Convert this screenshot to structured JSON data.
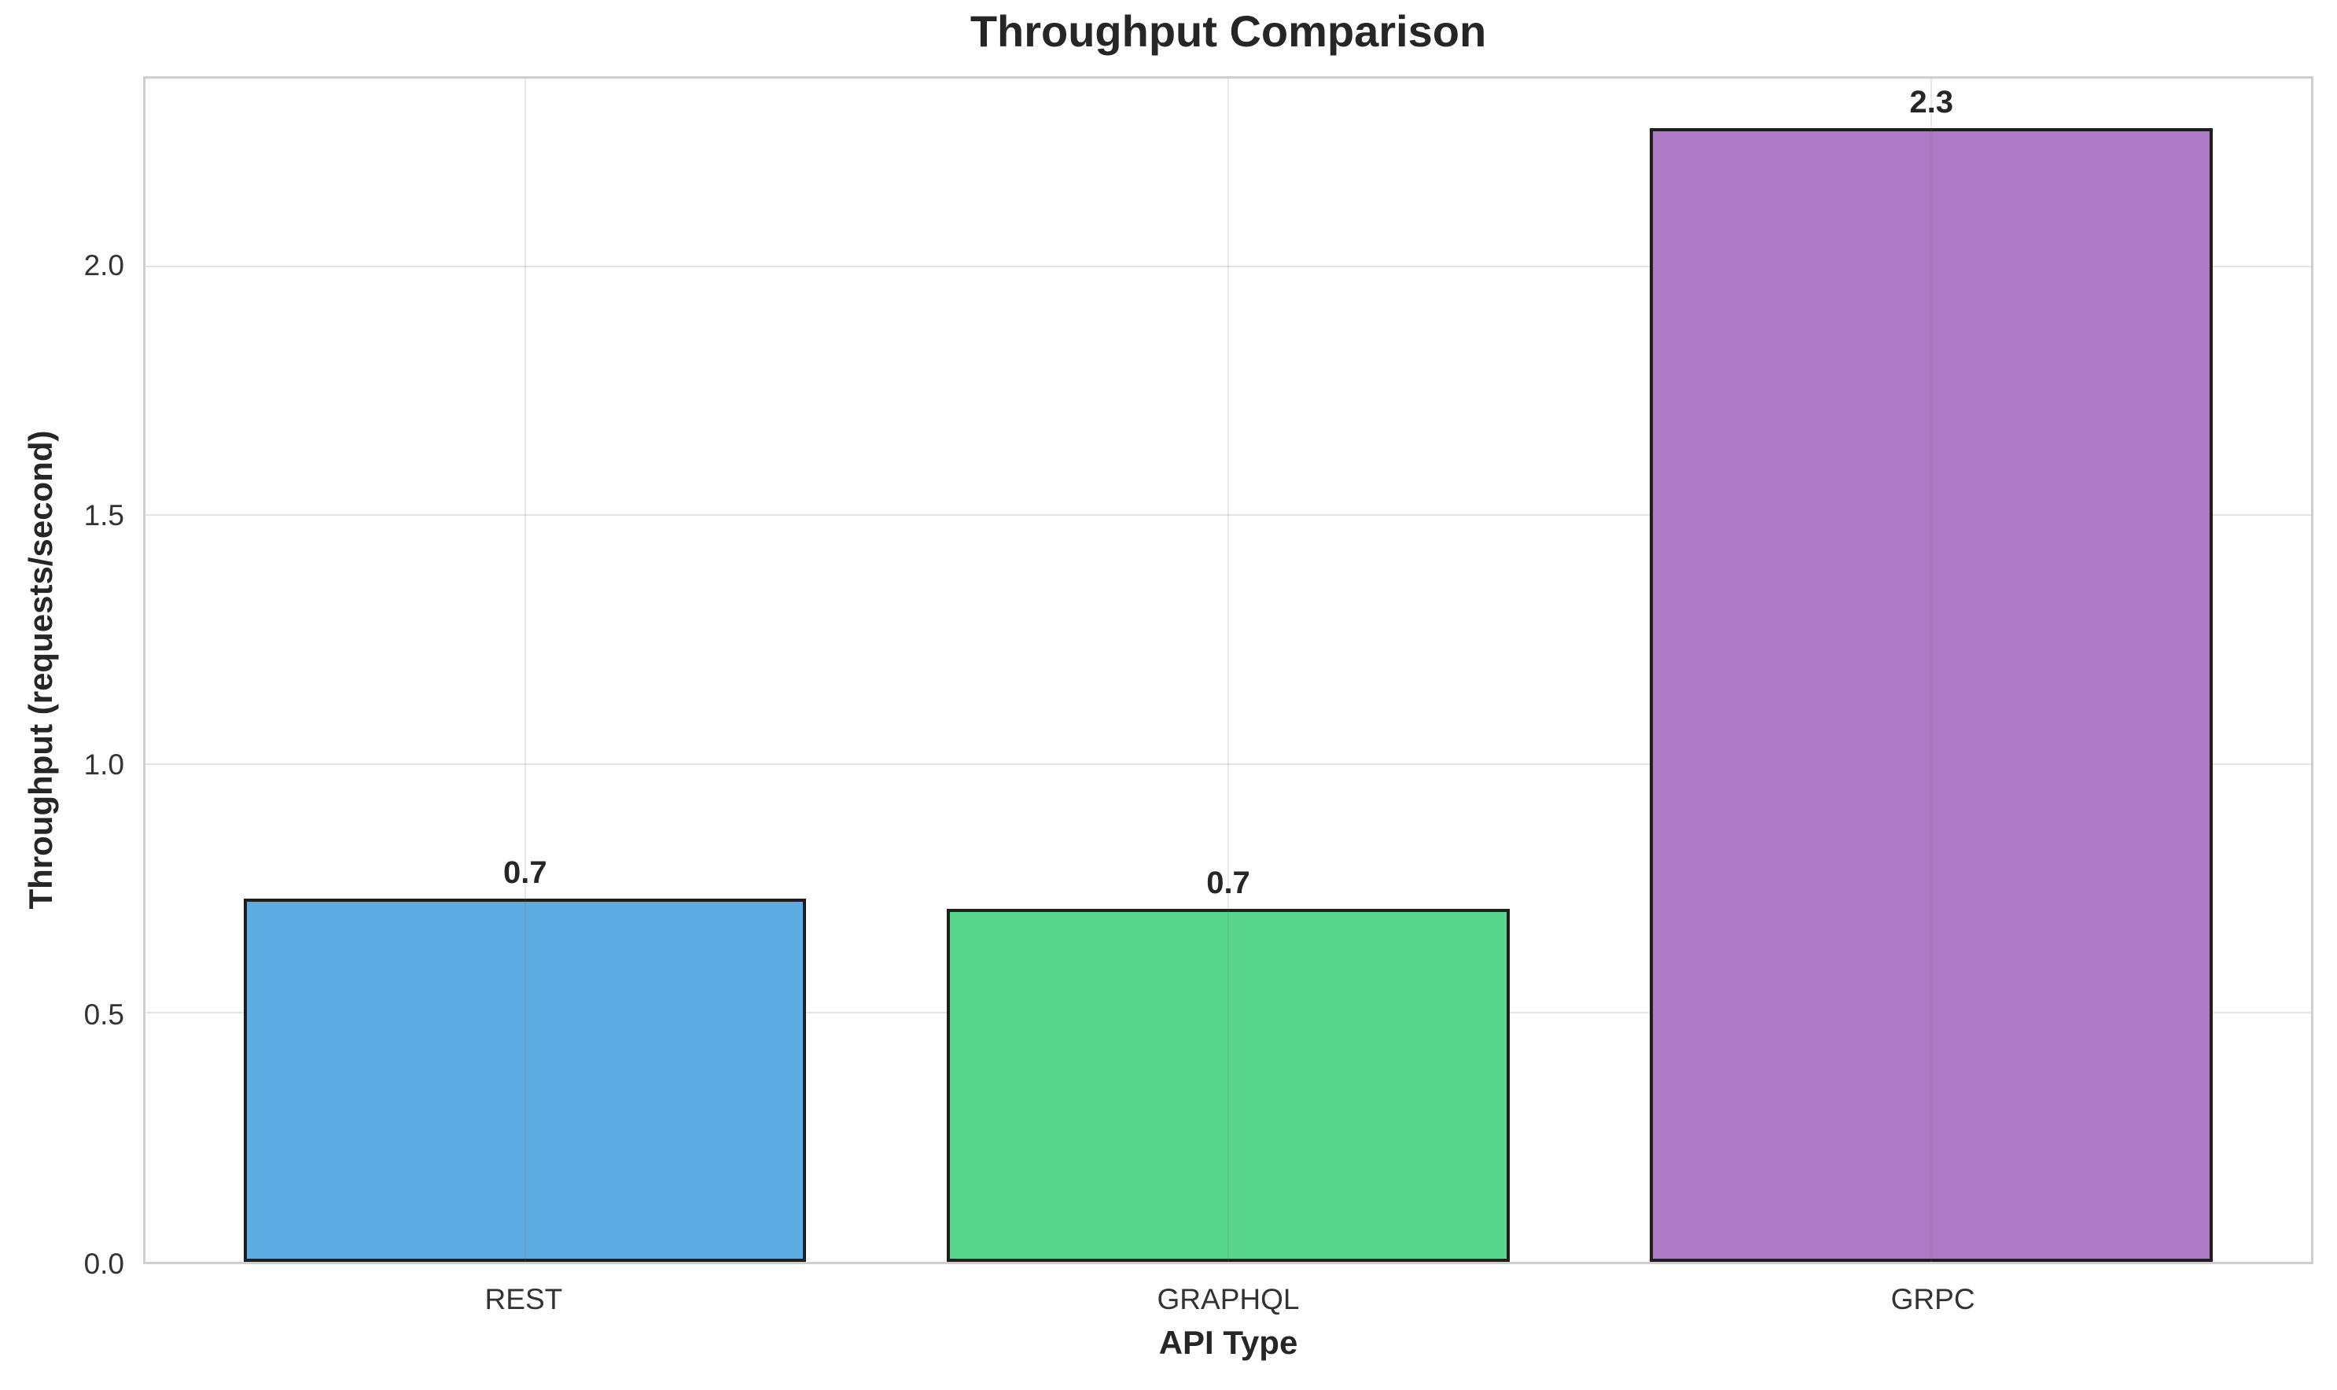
{
  "chart_data": {
    "type": "bar",
    "title": "Throughput Comparison",
    "xlabel": "API Type",
    "ylabel": "Throughput (requests/second)",
    "categories": [
      "REST",
      "GRAPHQL",
      "GRPC"
    ],
    "values": [
      0.7,
      0.7,
      2.3
    ],
    "values_precise": [
      0.73,
      0.71,
      2.28
    ],
    "bar_labels": [
      "0.7",
      "0.7",
      "2.3"
    ],
    "series_colors": [
      "#5DADE2",
      "#58D68D",
      "#AF7AC5"
    ],
    "bar_edge_color": "#1f1f1f",
    "bar_width": 0.8,
    "ylim": [
      0,
      2.38
    ],
    "xlim": [
      -0.54,
      2.54
    ],
    "yticks": [
      0.0,
      0.5,
      1.0,
      1.5,
      2.0
    ],
    "ytick_labels": [
      "0.0",
      "0.5",
      "1.0",
      "1.5",
      "2.0"
    ],
    "grid": true,
    "legend": false,
    "colors": {
      "background": "#ffffff",
      "grid": "#e4e4e4",
      "vgrid_overlay": "rgba(100,100,100,0.14)",
      "spine": "#cfcfcf",
      "title_text": "#262626",
      "tick_text": "#333333"
    }
  }
}
